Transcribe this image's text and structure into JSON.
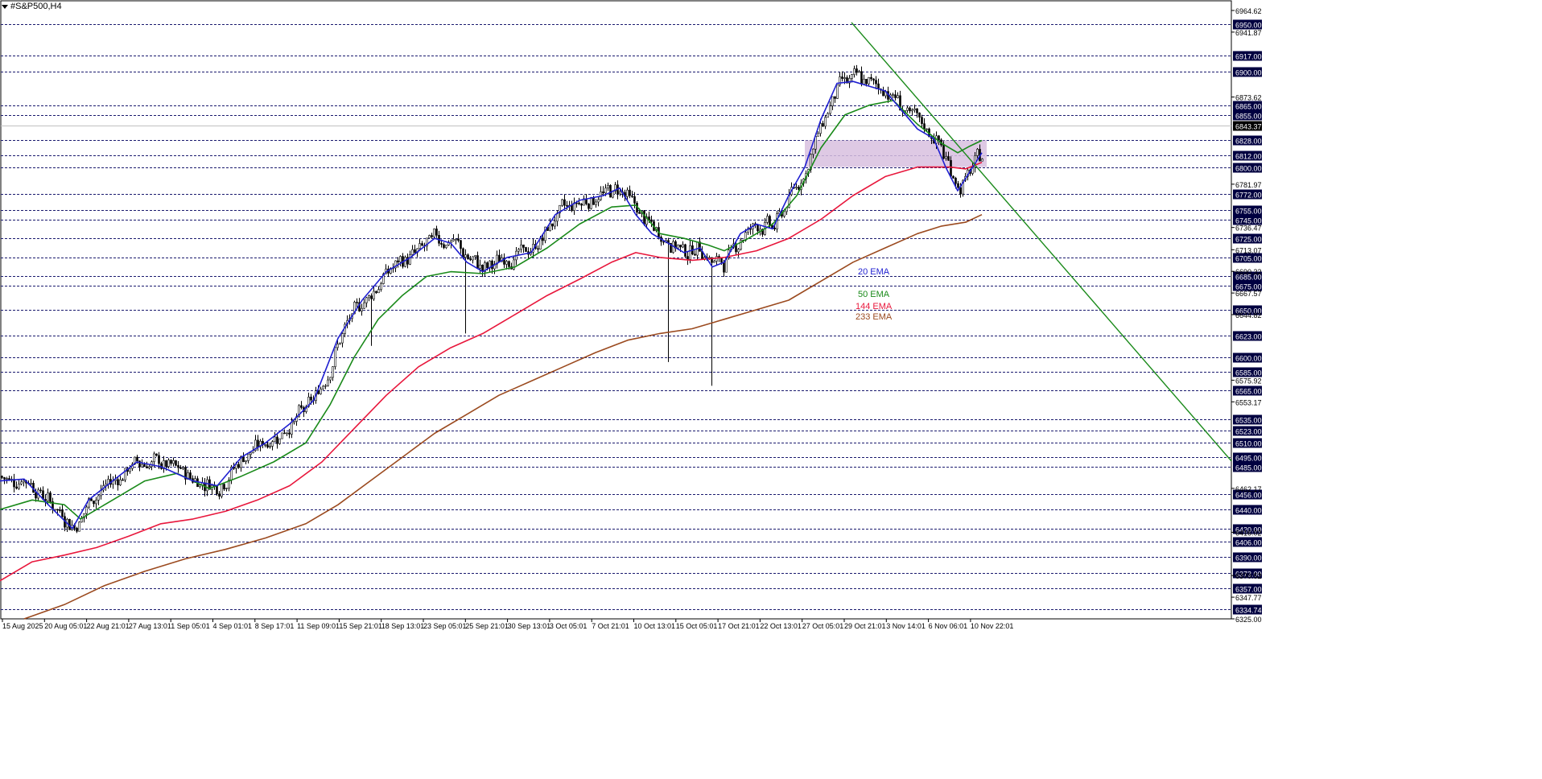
{
  "window": {
    "symbol_title": "#S&P500,H4"
  },
  "chart_data": {
    "type": "candlestick",
    "title": "#S&P500,H4",
    "ylim": [
      6325.0,
      6964.62
    ],
    "x_tick_labels": [
      "15 Aug 2025",
      "20 Aug 05:01",
      "22 Aug 21:01",
      "27 Aug 13:01",
      "1 Sep 05:01",
      "4 Sep 01:01",
      "8 Sep 17:01",
      "11 Sep 09:01",
      "15 Sep 21:01",
      "18 Sep 13:01",
      "23 Sep 05:01",
      "25 Sep 21:01",
      "30 Sep 13:01",
      "3 Oct 05:01",
      "7 Oct 21:01",
      "10 Oct 13:01",
      "15 Oct 05:01",
      "17 Oct 21:01",
      "22 Oct 13:01",
      "27 Oct 05:01",
      "29 Oct 21:01",
      "3 Nov 14:01",
      "6 Nov 06:01",
      "10 Nov 22:01"
    ],
    "price_scale_labels": [
      "6964.62",
      "6941.87",
      "6873.62",
      "6781.97",
      "6736.47",
      "6713.07",
      "6690.32",
      "6667.57",
      "6644.82",
      "6575.92",
      "6553.17",
      "6462.17",
      "6416.02",
      "6370.52",
      "6347.77",
      "6325.00"
    ],
    "horizontal_levels": [
      6950.0,
      6917.0,
      6900.0,
      6865.0,
      6855.0,
      6828.0,
      6812.0,
      6800.0,
      6772.0,
      6755.0,
      6745.0,
      6725.0,
      6705.0,
      6685.0,
      6675.0,
      6650.0,
      6623.0,
      6600.0,
      6585.0,
      6565.0,
      6535.0,
      6523.0,
      6510.0,
      6495.0,
      6485.0,
      6456.0,
      6440.0,
      6420.0,
      6406.0,
      6390.0,
      6373.0,
      6357.0,
      6334.74
    ],
    "current_price": "6843.37",
    "zone": {
      "from_date_index": 0.805,
      "to_date_index": 0.985,
      "low": 6800.0,
      "high": 6828.0,
      "color": "#d8bfdf"
    },
    "ema_labels": [
      {
        "name": "20 EMA",
        "color": "#1f1fd0"
      },
      {
        "name": "50 EMA",
        "color": "#1a8a1a"
      },
      {
        "name": "144 EMA",
        "color": "#e8173c"
      },
      {
        "name": "233 EMA",
        "color": "#9b4a1f"
      }
    ],
    "ema_20": [
      [
        0,
        6470
      ],
      [
        30,
        6472
      ],
      [
        60,
        6445
      ],
      [
        90,
        6420
      ],
      [
        110,
        6450
      ],
      [
        140,
        6470
      ],
      [
        170,
        6490
      ],
      [
        200,
        6485
      ],
      [
        240,
        6470
      ],
      [
        270,
        6465
      ],
      [
        300,
        6495
      ],
      [
        330,
        6510
      ],
      [
        360,
        6530
      ],
      [
        390,
        6555
      ],
      [
        420,
        6620
      ],
      [
        450,
        6660
      ],
      [
        480,
        6690
      ],
      [
        510,
        6705
      ],
      [
        540,
        6725
      ],
      [
        560,
        6720
      ],
      [
        580,
        6700
      ],
      [
        600,
        6690
      ],
      [
        630,
        6705
      ],
      [
        660,
        6710
      ],
      [
        690,
        6750
      ],
      [
        720,
        6765
      ],
      [
        750,
        6770
      ],
      [
        770,
        6778
      ],
      [
        790,
        6750
      ],
      [
        810,
        6730
      ],
      [
        830,
        6720
      ],
      [
        850,
        6710
      ],
      [
        870,
        6715
      ],
      [
        885,
        6695
      ],
      [
        900,
        6700
      ],
      [
        920,
        6730
      ],
      [
        940,
        6740
      ],
      [
        960,
        6735
      ],
      [
        980,
        6770
      ],
      [
        1000,
        6800
      ],
      [
        1020,
        6850
      ],
      [
        1040,
        6888
      ],
      [
        1060,
        6890
      ],
      [
        1080,
        6885
      ],
      [
        1100,
        6880
      ],
      [
        1120,
        6860
      ],
      [
        1140,
        6840
      ],
      [
        1160,
        6830
      ],
      [
        1175,
        6800
      ],
      [
        1190,
        6775
      ],
      [
        1205,
        6795
      ],
      [
        1220,
        6815
      ]
    ],
    "ema_50": [
      [
        0,
        6440
      ],
      [
        40,
        6450
      ],
      [
        80,
        6445
      ],
      [
        100,
        6430
      ],
      [
        140,
        6450
      ],
      [
        180,
        6470
      ],
      [
        220,
        6478
      ],
      [
        260,
        6462
      ],
      [
        300,
        6475
      ],
      [
        340,
        6490
      ],
      [
        380,
        6510
      ],
      [
        410,
        6550
      ],
      [
        440,
        6600
      ],
      [
        470,
        6640
      ],
      [
        500,
        6665
      ],
      [
        530,
        6685
      ],
      [
        560,
        6690
      ],
      [
        600,
        6688
      ],
      [
        640,
        6695
      ],
      [
        680,
        6715
      ],
      [
        720,
        6740
      ],
      [
        760,
        6758
      ],
      [
        790,
        6760
      ],
      [
        820,
        6730
      ],
      [
        850,
        6725
      ],
      [
        880,
        6718
      ],
      [
        900,
        6712
      ],
      [
        930,
        6725
      ],
      [
        960,
        6740
      ],
      [
        990,
        6770
      ],
      [
        1020,
        6820
      ],
      [
        1050,
        6855
      ],
      [
        1080,
        6865
      ],
      [
        1110,
        6870
      ],
      [
        1140,
        6845
      ],
      [
        1170,
        6825
      ],
      [
        1190,
        6815
      ],
      [
        1205,
        6822
      ],
      [
        1220,
        6828
      ]
    ],
    "ema_144": [
      [
        0,
        6365
      ],
      [
        40,
        6385
      ],
      [
        80,
        6392
      ],
      [
        120,
        6400
      ],
      [
        160,
        6412
      ],
      [
        200,
        6425
      ],
      [
        240,
        6430
      ],
      [
        280,
        6438
      ],
      [
        320,
        6450
      ],
      [
        360,
        6465
      ],
      [
        400,
        6490
      ],
      [
        440,
        6525
      ],
      [
        480,
        6560
      ],
      [
        520,
        6590
      ],
      [
        560,
        6610
      ],
      [
        600,
        6625
      ],
      [
        640,
        6645
      ],
      [
        680,
        6665
      ],
      [
        720,
        6682
      ],
      [
        760,
        6700
      ],
      [
        790,
        6710
      ],
      [
        820,
        6705
      ],
      [
        860,
        6702
      ],
      [
        900,
        6705
      ],
      [
        940,
        6712
      ],
      [
        980,
        6725
      ],
      [
        1020,
        6745
      ],
      [
        1060,
        6770
      ],
      [
        1100,
        6790
      ],
      [
        1140,
        6800
      ],
      [
        1180,
        6800
      ],
      [
        1200,
        6798
      ],
      [
        1220,
        6805
      ]
    ],
    "ema_233": [
      [
        30,
        6325
      ],
      [
        80,
        6340
      ],
      [
        130,
        6360
      ],
      [
        180,
        6375
      ],
      [
        230,
        6388
      ],
      [
        280,
        6398
      ],
      [
        330,
        6410
      ],
      [
        380,
        6425
      ],
      [
        420,
        6445
      ],
      [
        460,
        6470
      ],
      [
        500,
        6495
      ],
      [
        540,
        6520
      ],
      [
        580,
        6540
      ],
      [
        620,
        6560
      ],
      [
        660,
        6575
      ],
      [
        700,
        6590
      ],
      [
        740,
        6605
      ],
      [
        780,
        6618
      ],
      [
        820,
        6625
      ],
      [
        860,
        6630
      ],
      [
        900,
        6640
      ],
      [
        940,
        6650
      ],
      [
        980,
        6660
      ],
      [
        1020,
        6680
      ],
      [
        1060,
        6700
      ],
      [
        1100,
        6715
      ],
      [
        1140,
        6730
      ],
      [
        1170,
        6738
      ],
      [
        1200,
        6742
      ],
      [
        1220,
        6750
      ]
    ],
    "trendline": {
      "color": "#1a8a1a",
      "from": [
        1058,
        6952
      ],
      "to": [
        1530,
        6491
      ]
    }
  }
}
